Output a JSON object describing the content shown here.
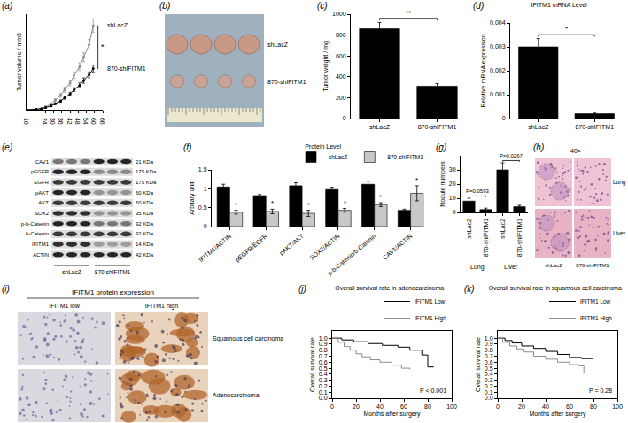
{
  "chart_data": [
    {
      "panel": "(a)",
      "type": "line",
      "y_label": "Tumor volume / mm3",
      "x": [
        10,
        17,
        21,
        24,
        28,
        31,
        35,
        38,
        42,
        45,
        49,
        52,
        56,
        59
      ],
      "series": [
        {
          "name": "shLacZ",
          "color": "#8c8c8c",
          "marker": "circle",
          "values": [
            0,
            5,
            15,
            30,
            60,
            100,
            150,
            210,
            280,
            360,
            450,
            550,
            680,
            880
          ],
          "error": [
            0,
            2,
            4,
            6,
            10,
            15,
            20,
            25,
            30,
            35,
            40,
            45,
            55,
            70
          ]
        },
        {
          "name": "870-shIFITM1",
          "color": "#000000",
          "marker": "circle",
          "values": [
            0,
            4,
            10,
            22,
            40,
            62,
            90,
            125,
            165,
            210,
            255,
            305,
            365,
            430
          ],
          "error": [
            0,
            2,
            3,
            5,
            7,
            10,
            12,
            15,
            18,
            20,
            25,
            28,
            30,
            35
          ]
        }
      ],
      "xlim": [
        10,
        66
      ],
      "xticks": [
        10,
        24,
        30,
        36,
        42,
        48,
        54,
        60,
        66
      ],
      "ylim": [
        0,
        1000
      ],
      "tick_labels": "x",
      "annotations": [
        {
          "text": "*"
        }
      ]
    },
    {
      "panel": "(c)",
      "type": "bar",
      "y_label": "Tumor weight / mg",
      "categories": [
        "shLacZ",
        "870-shIFITM1"
      ],
      "values": [
        860,
        310
      ],
      "error": [
        60,
        25
      ],
      "color": "#000000",
      "ylim": [
        0,
        1000
      ],
      "yticks": [
        0,
        200,
        400,
        600,
        800,
        1000
      ],
      "annotations": [
        {
          "text": "**",
          "between": [
            0,
            1
          ]
        }
      ]
    },
    {
      "panel": "(d)",
      "type": "bar",
      "title": "IFITM1 mRNA Level",
      "y_label": "Relative mRNA expression",
      "categories": [
        "shLacZ",
        "870-shIFITM1"
      ],
      "values": [
        0.003,
        0.0002
      ],
      "error": [
        0.00035,
        3e-05
      ],
      "color": "#000000",
      "ylim": [
        0,
        0.004
      ],
      "yticks": [
        0,
        0.001,
        0.002,
        0.003,
        0.004
      ],
      "annotations": [
        {
          "text": "*",
          "between": [
            0,
            1
          ]
        }
      ]
    },
    {
      "panel": "(f)",
      "type": "bar",
      "title": "Protein Level",
      "y_label": "Arbitary unit",
      "categories": [
        "IFITM1/ACTIN",
        "pEGFR/EGFR",
        "pAKT/AKT",
        "SOX2/ACTIN",
        "p-b-Catenin/b-Catenin",
        "CAV1/ACTIN"
      ],
      "series": [
        {
          "name": "shLacZ",
          "color": "#000000",
          "values": [
            1.05,
            0.82,
            1.08,
            0.98,
            1.12,
            0.43
          ],
          "error": [
            0.07,
            0.03,
            0.08,
            0.06,
            0.08,
            0.03
          ]
        },
        {
          "name": "870-shIFITM1",
          "color": "#c8c8c8",
          "values": [
            0.38,
            0.4,
            0.35,
            0.43,
            0.58,
            0.88
          ],
          "error": [
            0.05,
            0.06,
            0.08,
            0.05,
            0.05,
            0.2
          ],
          "significance": [
            "*",
            "*",
            "*",
            "*",
            "*",
            "*"
          ]
        }
      ],
      "ylim": [
        0,
        1.5
      ],
      "yticks": [
        0,
        0.5,
        1,
        1.5
      ],
      "legend": "top"
    },
    {
      "panel": "(g)",
      "type": "bar",
      "y_label": "Nodule numbers",
      "categories": [
        "shLacZ",
        "870-shIFITM1",
        "shLacZ",
        "870-shIFITM1"
      ],
      "groups": [
        "Lung",
        "Lung",
        "Liver",
        "Liver"
      ],
      "values": [
        8,
        2,
        30,
        4
      ],
      "error": [
        2,
        1,
        5,
        1
      ],
      "color": "#000000",
      "ylim": [
        0,
        40
      ],
      "yticks": [
        0,
        10,
        20,
        30
      ],
      "annotations": [
        {
          "text": "P=0.0593",
          "between": [
            0,
            1
          ]
        },
        {
          "text": "P=0.0267",
          "between": [
            2,
            3
          ]
        }
      ]
    },
    {
      "panel": "(j)",
      "type": "line",
      "title": "Overall survival rate in adenocarcinoma",
      "x_label": "Months after surgery",
      "y_label": "Overall survival rate",
      "series": [
        {
          "name": "IFITM1 Low",
          "color": "#000000",
          "line_style": "step",
          "x": [
            0,
            8,
            18,
            30,
            42,
            55,
            65,
            75,
            80,
            85
          ],
          "values": [
            1,
            0.97,
            0.94,
            0.91,
            0.88,
            0.85,
            0.8,
            0.72,
            0.52,
            0.52
          ]
        },
        {
          "name": "IFITM1 High",
          "color": "#8c8c8c",
          "line_style": "step",
          "x": [
            0,
            5,
            10,
            15,
            20,
            25,
            32,
            40,
            50,
            58,
            65
          ],
          "values": [
            1,
            0.93,
            0.86,
            0.8,
            0.74,
            0.69,
            0.64,
            0.6,
            0.55,
            0.5,
            0.48
          ]
        }
      ],
      "xlim": [
        0,
        100
      ],
      "xticks": [
        0,
        20,
        40,
        60,
        80,
        100
      ],
      "ylim": [
        0,
        1.12
      ],
      "yticks": [
        {
          "value": 0,
          "label": "0.0"
        },
        {
          "value": 0.1,
          "label": "0.1"
        },
        {
          "value": 0.2,
          "label": "0.2"
        },
        {
          "value": 0.3,
          "label": "0.3"
        },
        {
          "value": 0.4,
          "label": "0.4"
        },
        {
          "value": 0.5,
          "label": "0.5"
        },
        {
          "value": 0.6,
          "label": "0.6"
        },
        {
          "value": 0.7,
          "label": "0.7"
        },
        {
          "value": 0.8,
          "label": "0.8"
        },
        {
          "value": 0.9,
          "label": "0.9"
        },
        {
          "value": 1,
          "label": "1.0"
        }
      ],
      "legend": "top",
      "annotations": [
        {
          "text": "P < 0.001"
        }
      ]
    },
    {
      "panel": "(k)",
      "type": "line",
      "title": "Overall survival rate in squamous cell carcinoma",
      "x_label": "Months after surgery",
      "y_label": "Overall survival rate",
      "series": [
        {
          "name": "IFITM1 Low",
          "color": "#000000",
          "line_style": "step",
          "x": [
            0,
            6,
            12,
            20,
            30,
            40,
            50,
            60,
            70,
            80
          ],
          "values": [
            1,
            0.96,
            0.92,
            0.87,
            0.83,
            0.78,
            0.73,
            0.68,
            0.66,
            0.66
          ]
        },
        {
          "name": "IFITM1 High",
          "color": "#8c8c8c",
          "line_style": "step",
          "x": [
            0,
            4,
            10,
            16,
            22,
            30,
            40,
            50,
            60,
            68,
            72,
            80
          ],
          "values": [
            1,
            0.93,
            0.87,
            0.82,
            0.77,
            0.7,
            0.65,
            0.6,
            0.56,
            0.54,
            0.42,
            0.42
          ]
        }
      ],
      "xlim": [
        0,
        100
      ],
      "xticks": [
        0,
        20,
        40,
        60,
        80,
        100
      ],
      "ylim": [
        0,
        1.12
      ],
      "yticks": [
        {
          "value": 0,
          "label": "0.0"
        },
        {
          "value": 0.1,
          "label": "0.1"
        },
        {
          "value": 0.2,
          "label": "0.2"
        },
        {
          "value": 0.3,
          "label": "0.3"
        },
        {
          "value": 0.4,
          "label": "0.4"
        },
        {
          "value": 0.5,
          "label": "0.5"
        },
        {
          "value": 0.6,
          "label": "0.6"
        },
        {
          "value": 0.7,
          "label": "0.7"
        },
        {
          "value": 0.8,
          "label": "0.8"
        },
        {
          "value": 0.9,
          "label": "0.9"
        },
        {
          "value": 1,
          "label": "1.0"
        }
      ],
      "legend": "top",
      "annotations": [
        {
          "text": "P = 0.28"
        }
      ]
    }
  ],
  "image_panels": {
    "b": {
      "panel": "(b)",
      "labels": [
        "shLacZ",
        "870-shIFITM1"
      ]
    },
    "e": {
      "panel": "(e)",
      "rows": [
        {
          "label": "CAV1",
          "size": "21 KDa"
        },
        {
          "label": "pEGFR",
          "size": "175 KDa"
        },
        {
          "label": "EGFR",
          "size": "175 KDa"
        },
        {
          "label": "pAKT",
          "size": "60 KDa"
        },
        {
          "label": "AKT",
          "size": "60 KDa"
        },
        {
          "label": "SOX2",
          "size": "35 KDa"
        },
        {
          "label": "p-b-Catenin",
          "size": "92 KDa"
        },
        {
          "label": "b-Catenin",
          "size": "92 KDa"
        },
        {
          "label": "IFITM1",
          "size": "14 KDa"
        },
        {
          "label": "ACTIN",
          "size": "42 KDa"
        }
      ],
      "groups": [
        "shLacZ",
        "870-shIFITM1"
      ]
    },
    "h": {
      "panel": "(h)",
      "magnification": "40×",
      "rows": [
        "Lung",
        "Liver"
      ],
      "columns": [
        "shLacZ",
        "870-shIFITM1"
      ]
    },
    "i": {
      "panel": "(i)",
      "title": "IFITM1 protein expression",
      "columns": [
        "IFITM1 low",
        "IFITM1 high"
      ],
      "rows": [
        "Squamous cell carcinoma",
        "Adenocarcinoma"
      ]
    }
  }
}
